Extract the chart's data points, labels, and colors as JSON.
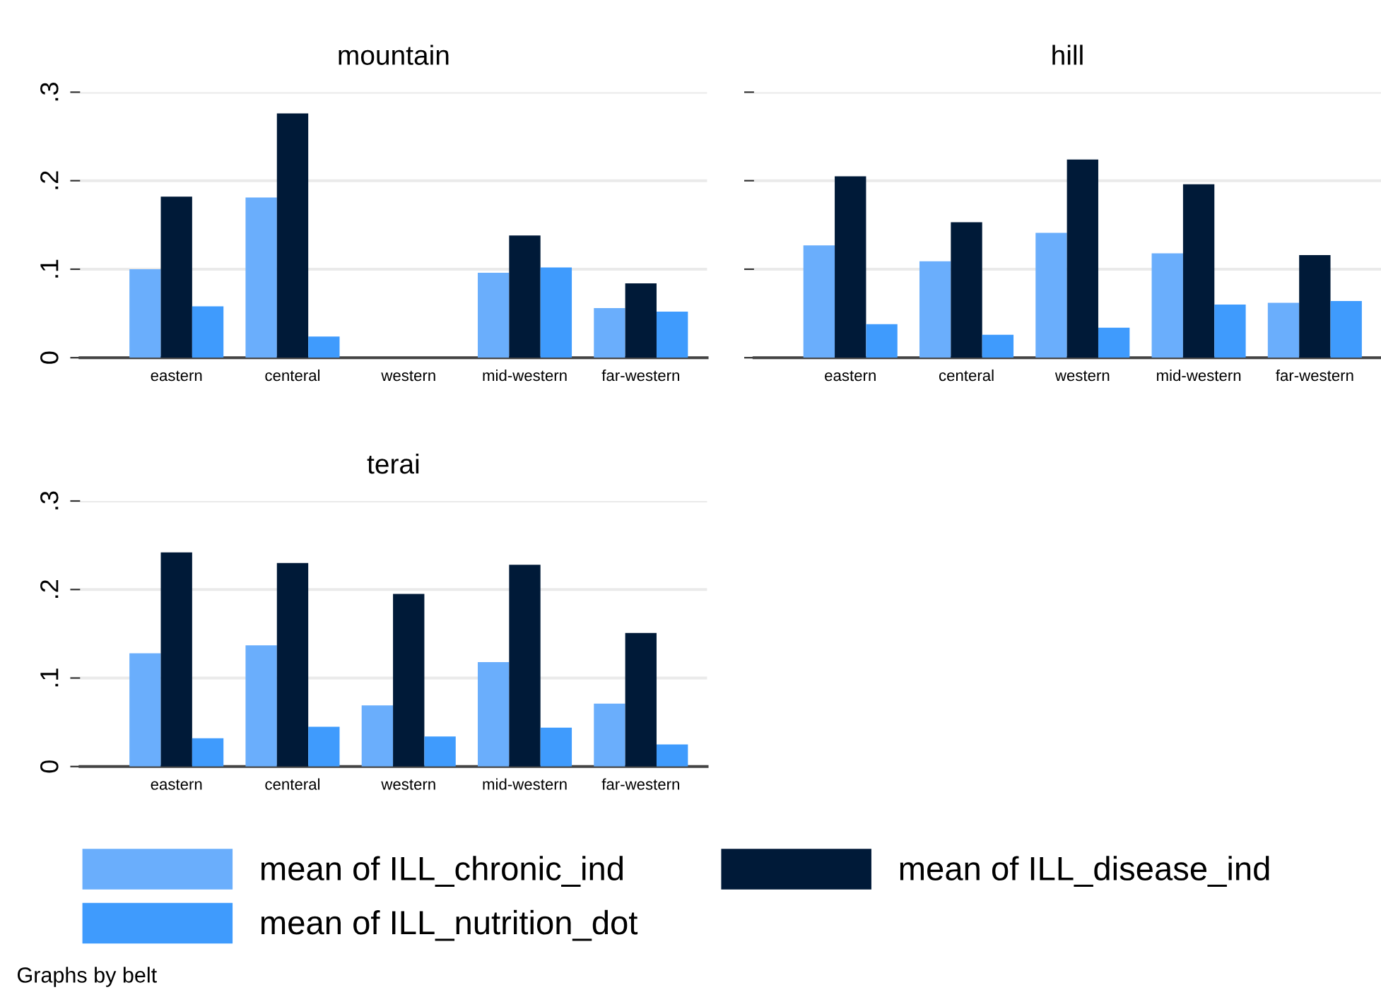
{
  "chart_data": [
    {
      "type": "bar",
      "title": "mountain",
      "categories": [
        "eastern",
        "centeral",
        "western",
        "mid-western",
        "far-western"
      ],
      "series": [
        {
          "name": "mean of ILL_chronic_ind",
          "color": "#6aaefc",
          "values": [
            0.1,
            0.181,
            null,
            0.096,
            0.056
          ]
        },
        {
          "name": "mean of ILL_disease_ind",
          "color": "#001a38",
          "values": [
            0.182,
            0.276,
            null,
            0.138,
            0.084
          ]
        },
        {
          "name": "mean of ILL_nutrition_dot",
          "color": "#3f9bfd",
          "values": [
            0.058,
            0.024,
            null,
            0.102,
            0.052
          ]
        }
      ],
      "ylim": [
        0,
        0.3
      ],
      "yticks": [
        0,
        {
          "value": 0.1,
          "label": ".1"
        },
        {
          "value": 0.2,
          "label": ".2"
        },
        {
          "value": 0.3,
          "label": ".3"
        }
      ],
      "grid": "y",
      "legend": "bottom",
      "annotations": [
        "Graphs by belt"
      ]
    },
    {
      "type": "bar",
      "title": "hill",
      "categories": [
        "eastern",
        "centeral",
        "western",
        "mid-western",
        "far-western"
      ],
      "series": [
        {
          "color": "#6aaefc",
          "values": [
            0.127,
            0.109,
            0.141,
            0.118,
            0.062
          ]
        },
        {
          "color": "#001a38",
          "values": [
            0.205,
            0.153,
            0.224,
            0.196,
            0.116
          ]
        },
        {
          "color": "#3f9bfd",
          "values": [
            0.038,
            0.026,
            0.034,
            0.06,
            0.064
          ]
        }
      ],
      "ylim": [
        0,
        0.3
      ],
      "yticks": [
        0,
        0.1,
        0.2,
        0.3
      ],
      "grid": "y",
      "tick_labels": "x"
    },
    {
      "type": "bar",
      "title": "terai",
      "categories": [
        "eastern",
        "centeral",
        "western",
        "mid-western",
        "far-western"
      ],
      "series": [
        {
          "color": "#6aaefc",
          "values": [
            0.128,
            0.137,
            0.069,
            0.118,
            0.071
          ]
        },
        {
          "color": "#001a38",
          "values": [
            0.242,
            0.23,
            0.195,
            0.228,
            0.151
          ]
        },
        {
          "color": "#3f9bfd",
          "values": [
            0.032,
            0.045,
            0.034,
            0.044,
            0.025
          ]
        }
      ],
      "ylim": [
        0,
        0.3
      ],
      "yticks": [
        0,
        {
          "value": 0.1,
          "label": ".1"
        },
        {
          "value": 0.2,
          "label": ".2"
        },
        {
          "value": 0.3,
          "label": ".3"
        }
      ],
      "grid": "y"
    }
  ]
}
